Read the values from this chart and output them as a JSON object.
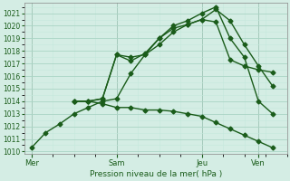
{
  "xlabel": "Pression niveau de la mer( hPa )",
  "bg_color": "#d4ede4",
  "grid_major_color": "#aad4c4",
  "grid_minor_color": "#c4e8dc",
  "line_color": "#1a5c1a",
  "ylim": [
    1009.8,
    1021.8
  ],
  "yticks": [
    1010,
    1011,
    1012,
    1013,
    1014,
    1015,
    1016,
    1017,
    1018,
    1019,
    1020,
    1021
  ],
  "day_labels": [
    "Mer",
    "Sam",
    "Jeu",
    "Ven"
  ],
  "day_positions": [
    0,
    24,
    48,
    64
  ],
  "xlim": [
    -2,
    72
  ],
  "vlines": [
    0,
    24,
    48,
    64
  ],
  "series": [
    {
      "x": [
        0,
        4,
        8,
        12,
        16,
        20,
        24,
        28,
        32,
        36,
        40,
        44,
        48,
        52,
        56,
        60,
        64,
        68
      ],
      "y": [
        1010.3,
        1011.5,
        1012.2,
        1013.0,
        1013.5,
        1014.0,
        1014.2,
        1016.2,
        1017.7,
        1018.5,
        1019.5,
        1020.1,
        1020.5,
        1021.3,
        1020.4,
        1018.5,
        1016.8,
        1015.2
      ],
      "marker": "D",
      "markersize": 2.5,
      "linewidth": 1.0
    },
    {
      "x": [
        12,
        16,
        20,
        24,
        28,
        32,
        36,
        40,
        44,
        48,
        52,
        56,
        60,
        64,
        68
      ],
      "y": [
        1014.0,
        1014.0,
        1014.2,
        1017.7,
        1017.5,
        1017.7,
        1019.0,
        1019.8,
        1020.1,
        1020.5,
        1020.3,
        1017.3,
        1016.8,
        1016.5,
        1016.3
      ],
      "marker": "D",
      "markersize": 2.5,
      "linewidth": 1.0
    },
    {
      "x": [
        12,
        16,
        20,
        24,
        28,
        32,
        36,
        40,
        44,
        48,
        52,
        56,
        60,
        64,
        68
      ],
      "y": [
        1014.0,
        1014.0,
        1014.2,
        1017.7,
        1017.2,
        1017.8,
        1019.0,
        1020.0,
        1020.4,
        1021.0,
        1021.5,
        1019.0,
        1017.5,
        1014.0,
        1013.0
      ],
      "marker": "D",
      "markersize": 2.5,
      "linewidth": 1.0
    },
    {
      "x": [
        12,
        16,
        20,
        24,
        28,
        32,
        36,
        40,
        44,
        48,
        52,
        56,
        60,
        64,
        68
      ],
      "y": [
        1014.0,
        1014.0,
        1013.8,
        1013.5,
        1013.5,
        1013.3,
        1013.3,
        1013.2,
        1013.0,
        1012.8,
        1012.3,
        1011.8,
        1011.3,
        1010.8,
        1010.3
      ],
      "marker": "D",
      "markersize": 2.5,
      "linewidth": 1.0
    }
  ]
}
